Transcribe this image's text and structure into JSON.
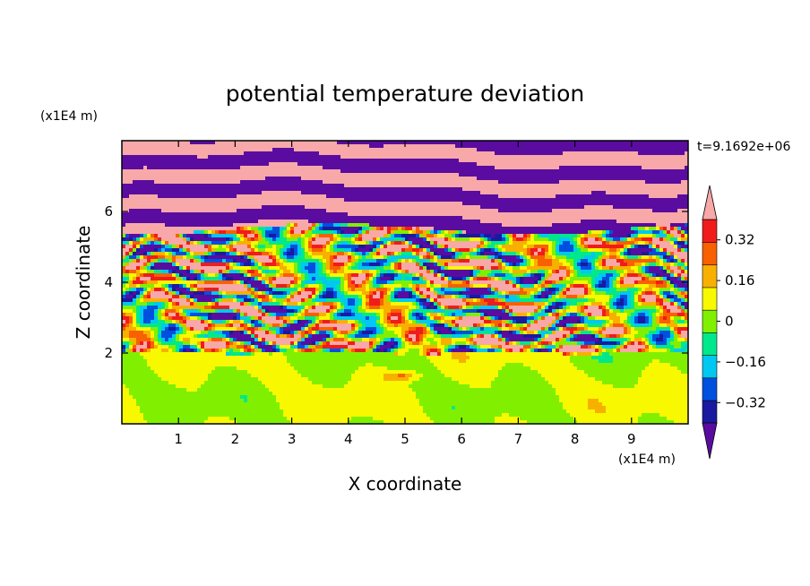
{
  "chart_data": {
    "type": "heatmap",
    "title": "potential temperature deviation",
    "xlabel": "X coordinate",
    "ylabel": "Z coordinate",
    "x_unit": "(x1E4 m)",
    "y_unit": "(x1E4 m)",
    "time_label": "t=9.1692e+06",
    "xlim": [
      0,
      10
    ],
    "ylim": [
      0,
      8
    ],
    "xticks": [
      1,
      2,
      3,
      4,
      5,
      6,
      7,
      8,
      9
    ],
    "yticks": [
      2,
      4,
      6
    ],
    "xtick_labels": [
      "1",
      "2",
      "3",
      "4",
      "5",
      "6",
      "7",
      "8",
      "9"
    ],
    "ytick_labels": [
      "2",
      "4",
      "6"
    ],
    "colorbar": {
      "levels": [
        -0.4,
        -0.32,
        -0.24,
        -0.16,
        -0.08,
        0,
        0.08,
        0.16,
        0.24,
        0.32,
        0.4
      ],
      "labels": [
        "0.32",
        "0.16",
        "0",
        "−0.16",
        "−0.32"
      ],
      "label_values": [
        0.32,
        0.16,
        0,
        -0.16,
        -0.32
      ],
      "colors": [
        "#5a0ca0",
        "#1a1aa0",
        "#0050e0",
        "#00c8f0",
        "#00e88c",
        "#80f000",
        "#f8f800",
        "#f8b000",
        "#f86000",
        "#f01c1c",
        "#f8a8a8"
      ],
      "extend": "both"
    },
    "layers": [
      {
        "z_min": 0.0,
        "z_max": 2.0,
        "pattern": "calm",
        "values": [
          0.0,
          0.08
        ]
      },
      {
        "z_min": 2.0,
        "z_max": 5.5,
        "pattern": "turbulent",
        "values": [
          -0.4,
          0.4
        ]
      },
      {
        "z_min": 5.5,
        "z_max": 8.0,
        "pattern": "bands",
        "values": [
          -0.4,
          0.4
        ]
      }
    ]
  }
}
